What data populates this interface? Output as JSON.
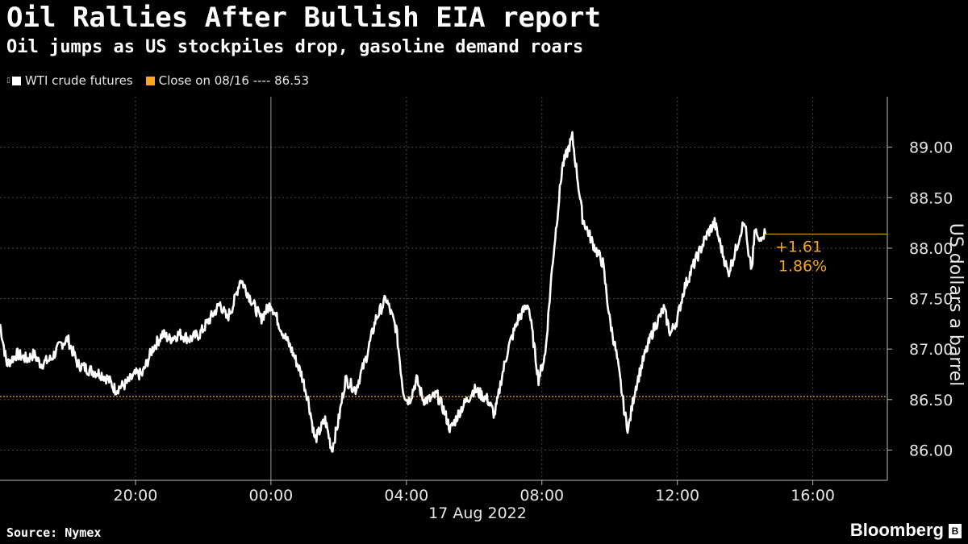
{
  "header": {
    "title": "Oil Rallies After Bullish EIA report",
    "subtitle": "Oil jumps as US stockpiles drop, gasoline demand roars"
  },
  "legend": {
    "series_label": "WTI crude futures",
    "reference_label": "Close on 08/16 ---- 86.53"
  },
  "footer": {
    "source": "Source: Nymex",
    "brand": "Bloomberg"
  },
  "colors": {
    "background": "#000000",
    "series": "#ffffff",
    "reference": "#f5a623",
    "grid": "#4a4a4a"
  },
  "chart_data": {
    "type": "line",
    "ylabel": "US dollars a barrel",
    "ylim": [
      85.7,
      89.5
    ],
    "y_ticks": [
      86.0,
      86.5,
      87.0,
      87.5,
      88.0,
      88.5,
      89.0
    ],
    "x_ticks": [
      "20:00",
      "00:00",
      "04:00",
      "08:00",
      "12:00",
      "16:00"
    ],
    "x_tick_hours": [
      -4,
      0,
      4,
      8,
      12,
      16
    ],
    "x_range_hours": [
      -8,
      18.2
    ],
    "date_label": "17 Aug 2022",
    "reference_line": {
      "label": "Close on 08/16",
      "value": 86.53
    },
    "change_annotation": {
      "abs": "+1.61",
      "pct": "1.86%"
    },
    "last_value": 88.14,
    "series": [
      {
        "name": "WTI crude futures",
        "x_hours": [
          -8,
          -7.8,
          -7.5,
          -7.2,
          -7,
          -6.8,
          -6.5,
          -6.2,
          -6,
          -5.7,
          -5.4,
          -5,
          -4.8,
          -4.6,
          -4.3,
          -4,
          -3.8,
          -3.5,
          -3.2,
          -3,
          -2.7,
          -2.4,
          -2.1,
          -1.8,
          -1.5,
          -1.3,
          -1.1,
          -0.9,
          -0.6,
          -0.3,
          0,
          0.3,
          0.6,
          0.9,
          1.1,
          1.3,
          1.6,
          1.8,
          2,
          2.2,
          2.5,
          2.8,
          3.1,
          3.4,
          3.7,
          3.9,
          4,
          4.1,
          4.3,
          4.5,
          4.7,
          4.9,
          5.1,
          5.3,
          5.6,
          5.8,
          6,
          6.2,
          6.4,
          6.6,
          6.7,
          6.8,
          7,
          7.3,
          7.6,
          7.9,
          8.1,
          8.3,
          8.6,
          8.9,
          9.2,
          9.5,
          9.8,
          10,
          10.2,
          10.35,
          10.45,
          10.55,
          10.75,
          11,
          11.3,
          11.6,
          11.8,
          12,
          12.2,
          12.5,
          12.7,
          12.9,
          13.1,
          13.3,
          13.5,
          13.7,
          13.9,
          14,
          14.1,
          14.2,
          14.3,
          14.4,
          14.5,
          14.6
        ],
        "values": [
          87.25,
          86.85,
          86.95,
          86.9,
          86.95,
          86.85,
          86.9,
          87.05,
          87.1,
          86.85,
          86.8,
          86.75,
          86.7,
          86.6,
          86.65,
          86.75,
          86.75,
          87.0,
          87.15,
          87.1,
          87.15,
          87.1,
          87.15,
          87.3,
          87.45,
          87.3,
          87.45,
          87.7,
          87.5,
          87.3,
          87.45,
          87.2,
          87.0,
          86.75,
          86.5,
          86.1,
          86.3,
          86.0,
          86.3,
          86.7,
          86.6,
          86.9,
          87.3,
          87.5,
          87.2,
          86.6,
          86.5,
          86.5,
          86.7,
          86.5,
          86.5,
          86.55,
          86.4,
          86.2,
          86.4,
          86.5,
          86.6,
          86.55,
          86.5,
          86.35,
          86.5,
          86.7,
          87.0,
          87.3,
          87.45,
          86.7,
          86.95,
          87.8,
          88.8,
          89.1,
          88.3,
          88.05,
          87.85,
          87.3,
          86.95,
          86.6,
          86.35,
          86.2,
          86.6,
          86.9,
          87.2,
          87.4,
          87.15,
          87.3,
          87.6,
          87.85,
          88.0,
          88.15,
          88.25,
          88.0,
          87.75,
          87.95,
          88.2,
          88.25,
          87.9,
          87.8,
          88.2,
          88.05,
          88.15,
          88.14
        ]
      }
    ]
  }
}
